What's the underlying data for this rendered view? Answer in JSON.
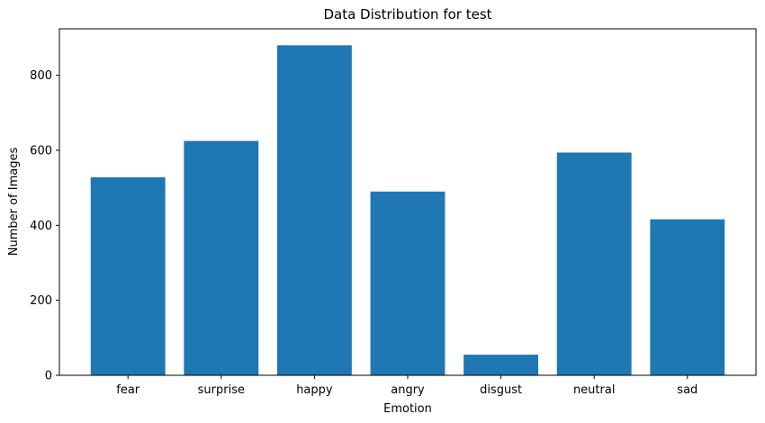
{
  "chart_data": {
    "type": "bar",
    "title": "Data Distribution for test",
    "xlabel": "Emotion",
    "ylabel": "Number of Images",
    "categories": [
      "fear",
      "surprise",
      "happy",
      "angry",
      "disgust",
      "neutral",
      "sad"
    ],
    "values": [
      528,
      625,
      880,
      490,
      55,
      594,
      416
    ],
    "ylim": [
      0,
      924
    ],
    "yticks": [
      0,
      200,
      400,
      600,
      800
    ],
    "ytick_labels": [
      "0",
      "200",
      "400",
      "600",
      "800"
    ],
    "grid": false,
    "bar_color": "#1f77b4"
  }
}
